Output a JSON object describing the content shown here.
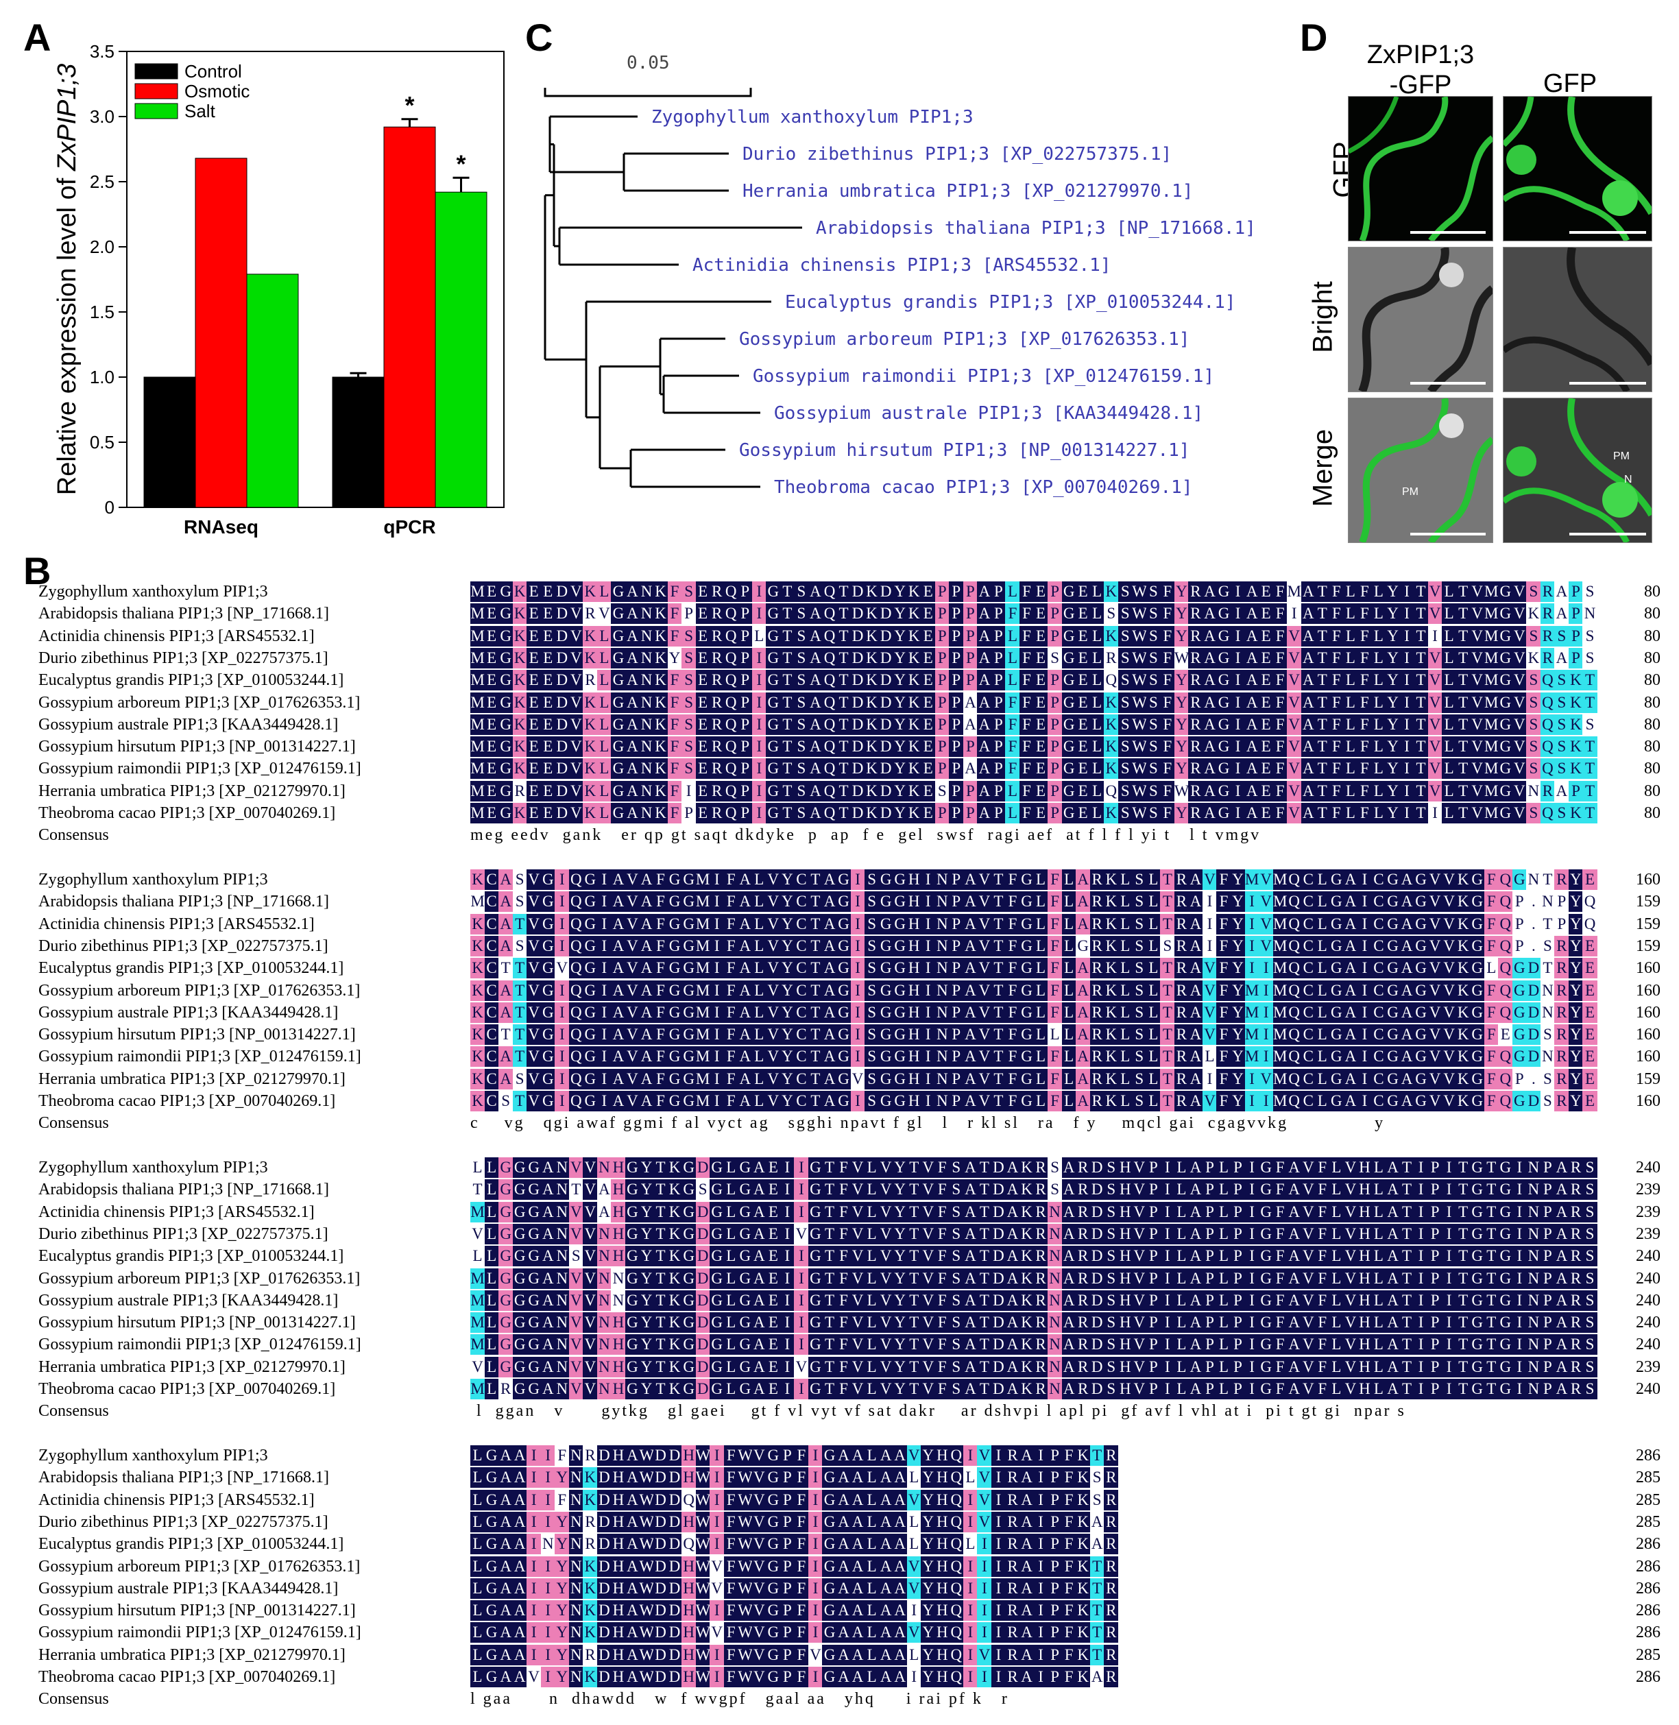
{
  "panels": {
    "a": "A",
    "b": "B",
    "c": "C",
    "d": "D"
  },
  "chart_data": {
    "type": "bar",
    "categories": [
      "RNAseq",
      "qPCR"
    ],
    "series": [
      {
        "name": "Control",
        "color": "#000000",
        "values": [
          1.0,
          1.0
        ],
        "errors": [
          0,
          0.03
        ]
      },
      {
        "name": "Osmotic",
        "color": "#ff0000",
        "values": [
          2.68,
          2.92
        ],
        "errors": [
          0,
          0.06
        ]
      },
      {
        "name": "Salt",
        "color": "#00dd00",
        "values": [
          1.79,
          2.42
        ],
        "errors": [
          0,
          0.11
        ]
      }
    ],
    "significance": [
      [
        "",
        "",
        ""
      ],
      [
        "",
        "*",
        "*"
      ]
    ],
    "ylabel_prefix": "Relative expression level of ",
    "ylabel_gene": "ZxPIP1;3",
    "ylim": [
      0,
      3.5
    ],
    "yticks": [
      "0",
      "0.5",
      "1.0",
      "1.5",
      "2.0",
      "2.5",
      "3.0",
      "3.5"
    ],
    "legend_position": "top-left"
  },
  "tree": {
    "scale_label": "0.05",
    "leaves": [
      "Zygophyllum xanthoxylum PIP1;3",
      "Durio zibethinus PIP1;3 [XP_022757375.1]",
      "Herrania umbratica PIP1;3 [XP_021279970.1]",
      "Arabidopsis thaliana PIP1;3 [NP_171668.1]",
      "Actinidia chinensis PIP1;3 [ARS45532.1]",
      "Eucalyptus grandis PIP1;3 [XP_010053244.1]",
      "Gossypium arboreum PIP1;3 [XP_017626353.1]",
      "Gossypium raimondii PIP1;3 [XP_012476159.1]",
      "Gossypium australe PIP1;3 [KAA3449428.1]",
      "Gossypium hirsutum PIP1;3 [NP_001314227.1]",
      "Theobroma cacao PIP1;3 [XP_007040269.1]"
    ]
  },
  "microscopy": {
    "col1_line1": "ZxPIP1;3",
    "col1_line2": "-GFP",
    "col2": "GFP",
    "row1": "GFP",
    "row2": "Bright",
    "row3": "Merge",
    "pm": "PM",
    "n": "N"
  },
  "alignment": {
    "consensus_label": "Consensus",
    "names": [
      "Zygophyllum xanthoxylum PIP1;3",
      "Arabidopsis thaliana PIP1;3 [NP_171668.1]",
      "Actinidia chinensis PIP1;3 [ARS45532.1]",
      "Durio zibethinus PIP1;3 [XP_022757375.1]",
      "Eucalyptus grandis PIP1;3 [XP_010053244.1]",
      "Gossypium arboreum PIP1;3 [XP_017626353.1]",
      "Gossypium australe PIP1;3 [KAA3449428.1]",
      "Gossypium hirsutum PIP1;3 [NP_001314227.1]",
      "Gossypium raimondii PIP1;3 [XP_012476159.1]",
      "Herrania umbratica PIP1;3 [XP_021279970.1]",
      "Theobroma cacao PIP1;3 [XP_007040269.1]"
    ],
    "blocks": [
      {
        "seqs": [
          "MEGKEEDVKLGANKFSERQPIGTSAQTDKDYKEPPPAPLFEPGELKSWSFYRAGIAEFMATFLFLYITVLTVMGVSRAPS",
          "MEGKEEDVRVGANKFPERQPIGTSAQTDKDYKEPPPAPFFEPGELSSWSFYRAGIAEFIATFLFLYITVLTVMGVKRAPN",
          "MEGKEEDVKLGANKFSERQPLGTSAQTDKDYKEPPPAPLFEPGELKSWSFYRAGIAEFVATFLFLYITILTVMGVSRSPS",
          "MEGKEEDVKLGANKYSERQPIGTSAQTDKDYKEPPPAPLFESGELRSWSFWRAGIAEFVATFLFLYITVLTVMGVKRAPS",
          "MEGKEEDVRLGANKFSERQPIGTSAQTDKDYKEPPPAPLFEPGELQSWSFYRAGIAEFVATFLFLYITVLTVMGVSQSKT",
          "MEGKEEDVKLGANKFSERQPIGTSAQTDKDYKEPPAAPFFEPGELKSWSFYRAGIAEFVATFLFLYITVLTVMGVSQSKT",
          "MEGKEEDVKLGANKFSERQPIGTSAQTDKDYKEPPAAPFFEPGELKSWSFYRAGIAEFVATFLFLYITVLTVMGVSQSKS",
          "MEGKEEDVKLGANKFSERQPIGTSAQTDKDYKEPPPAPFFEPGELKSWSFYRAGIAEFVATFLFLYITVLTVMGVSQSKT",
          "MEGKEEDVKLGANKFSERQPIGTSAQTDKDYKEPPAAPFFEPGELKSWSFYRAGIAEFVATFLFLYITVLTVMGVSQSKT",
          "MEGREEDVKLGANKFIERQPIGTSAQTDKDYKESPPAPLFEPGELQSWSFWRAGIAEFVATFLFLYITVLTVMGVNRAPT",
          "MEGKEEDVKLGANKFPERQPIGTSAQTDKDYKEPPPAPLFEPGELKSWSFYRAGIAEFVATFLFLYITILTVMGVSQSKT"
        ],
        "nums": [
          "80",
          "80",
          "80",
          "80",
          "80",
          "80",
          "80",
          "80",
          "80",
          "80",
          "80"
        ],
        "consensus": "meg eedv  gank   er qp gt saqt dkdyke  p  ap  f e  gel  swsf  ragi aef  at f l f l yi t   l t vmgv"
      },
      {
        "seqs": [
          "KCASVGIQGIAVAFGGMIFALVYCTAGISGGHINPAVTFGLFLARKLSLTRAVFYMVMQCLGAICGAGVVKGFQGNTRYE",
          "MCASVGIQGIAVAFGGMIFALVYCTAGISGGHINPAVTFGLFLARKLSLTRAIFYIVMQCLGAICGAGVVKGFQP.NPYQ",
          "KCATVGIQGIAVAFGGMIFALVYCTAGISGGHINPAVTFGLFLARKLSLTRAIFYIVMQCLGAICGAGVVKGFQP.TPYQ",
          "KCASVGIQGIAVAFGGMIFALVYCTAGISGGHINPAVTFGLFLGRKLSLSRAIFYIVMQCLGAICGAGVVKGFQP.SRYE",
          "KCTTVGVQGIAVAFGGMIFALVYCTAGISGGHINPAVTFGLFLARKLSLTRAVFYIIMQCLGAICGAGVVKGLQGDTRYE",
          "KCATVGIQGIAVAFGGMIFALVYCTAGISGGHINPAVTFGLFLARKLSLTRAVFYMIMQCLGAICGAGVVKGFQGDNRYE",
          "KCATVGIQGIAVAFGGMIFALVYCTAGISGGHINPAVTFGLFLARKLSLTRAVFYMIMQCLGAICGAGVVKGFQGDNRYE",
          "KCTTVGIQGIAVAFGGMIFALVYCTAGISGGHINPAVTFGLLLARKLSLTRAVFYMIMQCLGAICGAGVVKGFEGDSRYE",
          "KCATVGIQGIAVAFGGMIFALVYCTAGISGGHINPAVTFGLFLARKLSLTRALFYMIMQCLGAICGAGVVKGFQGDNRYE",
          "KCASVGIQGIAVAFGGMIFALVYCTAGVSGGHINPAVTFGLFLARKLSLTRAIFYIVMQCLGAICGAGVVKGFQP.SRYE",
          "KCSTVGIQGIAVAFGGMIFALVYCTAGISGGHINPAVTFGLFLARKLSLTRAVFYIIMQCLGAICGAGVVKGFQGDSRYE"
        ],
        "nums": [
          "160",
          "159",
          "159",
          "159",
          "160",
          "160",
          "160",
          "160",
          "160",
          "159",
          "160"
        ],
        "consensus": "c    vg   qgi awaf ggmi f al vyct ag   sgghi npavt f gl   l   r kl sl   ra   f y    mqcl gai  cgagvvkg              y"
      },
      {
        "seqs": [
          "LLGGGANVVNHGYTKGDGLGAEIIGTFVLVYTVFSATDAKRSARDSHVPILAPLPIGFAVFLVHLATIPITGTGINPARS",
          "TLGGGANTVAHGYTKGSGLGAEIIGTFVLVYTVFSATDAKRSARDSHVPILAPLPIGFAVFLVHLATIPITGTGINPARS",
          "MLGGGANVVAHGYTKGDGLGAEIIGTFVLVYTVFSATDAKRNARDSHVPILAPLPIGFAVFLVHLATIPITGTGINPARS",
          "VLGGGANVVNHGYTKGDGLGAEIVGTFVLVYTVFSATDAKRNARDSHVPILAPLPIGFAVFLVHLATIPITGTGINPARS",
          "LLGGGANSVNHGYTKGDGLGAEIIGTFVLVYTVFSATDAKRNARDSHVPILAPLPIGFAVFLVHLATIPITGTGINPARS",
          "MLGGGANVVNNGYTKGDGLGAEIIGTFVLVYTVFSATDAKRNARDSHVPILAPLPIGFAVFLVHLATIPITGTGINPARS",
          "MLGGGANVVNNGYTKGDGLGAEIIGTFVLVYTVFSATDAKRNARDSHVPILAPLPIGFAVFLVHLATIPITGTGINPARS",
          "MLGGGANVVNHGYTKGDGLGAEIIGTFVLVYTVFSATDAKRNARDSHVPILAPLPIGFAVFLVHLATIPITGTGINPARS",
          "MLGGGANVVNHGYTKGDGLGAEIIGTFVLVYTVFSATDAKRNARDSHVPILAPLPIGFAVFLVHLATIPITGTGINPARS",
          "VLGGGANVVNHGYTKGDGLGAEIVGTFVLVYTVFSATDAKRNARDSHVPILAPLPIGFAVFLVHLATIPITGTGINPARS",
          "MLRGGANVVNHGYTKGDGLGAEIIGTFVLVYTVFSATDAKRNARDSHVPILAPLPIGFAVFLVHLATIPITGTGINPARS"
        ],
        "nums": [
          "240",
          "239",
          "239",
          "239",
          "240",
          "240",
          "240",
          "240",
          "240",
          "239",
          "240"
        ],
        "consensus": " l  ggan   v      gytkg   gl gaei    gt f vl vyt vf sat dakr    ar dshvpi l apl pi  gf avf l vhl at i  pi t gt gi  npar s"
      },
      {
        "seqs": [
          "LGAAIIFNRDHAWDDHWIFWVGPFIGAALAAVYHQIVIRAIPFKTR",
          "LGAAIIYNKDHAWDDHWIFWVGPFIGAALAALYHQLVIRAIPFKSR",
          "LGAAIIFNKDHAWDDQWIFWVGPFIGAALAAVYHQIVIRAIPFKSR",
          "LGAAIIYNRDHAWDDHWIFWVGPFIGAALAALYHQIVIRAIPFKAR",
          "LGAAINYNRDHAWDDQWIFWVGPFIGAALAALYHQLIIRAIPFKAR",
          "LGAAIIYNKDHAWDDHWVFWVGPFIGAALAAVYHQIIIRAIPFKTR",
          "LGAAIIYNKDHAWDDHWVFWVGPFIGAALAAVYHQIIIRAIPFKTR",
          "LGAAIIYNKDHAWDDHWIFWVGPFIGAALAAIYHQIIIRAIPFKTR",
          "LGAAIIYNKDHAWDDHWVFWVGPFIGAALAAVYHQIIIRAIPFKTR",
          "LGAAIIYNRDHAWDDHWIFWVGPFVGAALAALYHQIVIRAIPFKTR",
          "LGAAVIYNKDHAWDDHWIFWVGPFIGAALAAIYHQIIIRAIPFKAR"
        ],
        "nums": [
          "286",
          "285",
          "285",
          "285",
          "286",
          "286",
          "286",
          "286",
          "286",
          "285",
          "286"
        ],
        "consensus": "l gaa      n  dhawdd   w  f wvgpf   gaal aa   yhq     i rai pf k   r"
      }
    ],
    "colors": {
      "identical": "#0d0d4a",
      "high": "#ec7fb6",
      "medium": "#33e3ec",
      "text_dark": "#ffffff",
      "text_light": "#0d0d4a"
    }
  }
}
